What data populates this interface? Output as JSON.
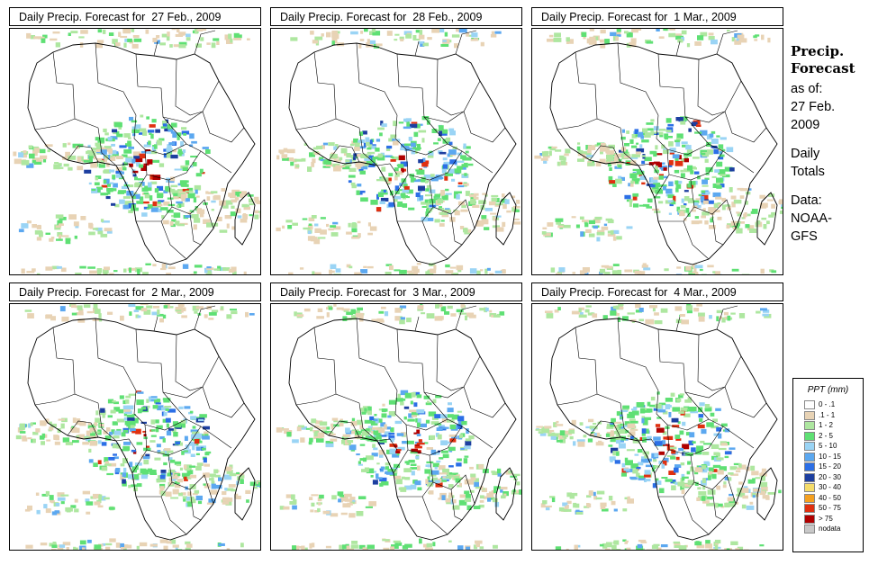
{
  "panels": [
    {
      "title": "Daily Precip. Forecast for  27 Feb., 2009"
    },
    {
      "title": "Daily Precip. Forecast for  28 Feb., 2009"
    },
    {
      "title": "Daily Precip. Forecast for  1 Mar., 2009"
    },
    {
      "title": "Daily Precip. Forecast for  2 Mar., 2009"
    },
    {
      "title": "Daily Precip. Forecast for  3 Mar., 2009"
    },
    {
      "title": "Daily Precip. Forecast for  4 Mar., 2009"
    }
  ],
  "side": {
    "title_line1": "Precip.",
    "title_line2": "Forecast",
    "asof_line1": "as of:",
    "asof_line2": "27 Feb.",
    "asof_line3": "2009",
    "totals_line1": "Daily",
    "totals_line2": "Totals",
    "data_line1": "Data:",
    "data_line2": "NOAA-",
    "data_line3": "GFS"
  },
  "legend": {
    "title": "PPT (mm)",
    "items": [
      {
        "label": "0 - .1",
        "color": "#ffffff"
      },
      {
        "label": ".1 - 1",
        "color": "#e8d3b5"
      },
      {
        "label": "1 - 2",
        "color": "#aee7a0"
      },
      {
        "label": "2 - 5",
        "color": "#5fe074"
      },
      {
        "label": "5 - 10",
        "color": "#9ad4f5"
      },
      {
        "label": "10 - 15",
        "color": "#5ca8f0"
      },
      {
        "label": "15 - 20",
        "color": "#2c6fe6"
      },
      {
        "label": "20 - 30",
        "color": "#1d3fa0"
      },
      {
        "label": "30 - 40",
        "color": "#f5dc6a"
      },
      {
        "label": "40 - 50",
        "color": "#f5a020"
      },
      {
        "label": "50 - 75",
        "color": "#e03010"
      },
      {
        "label": "> 75",
        "color": "#b00000"
      },
      {
        "label": "nodata",
        "color": "#c8c8c8"
      }
    ]
  }
}
